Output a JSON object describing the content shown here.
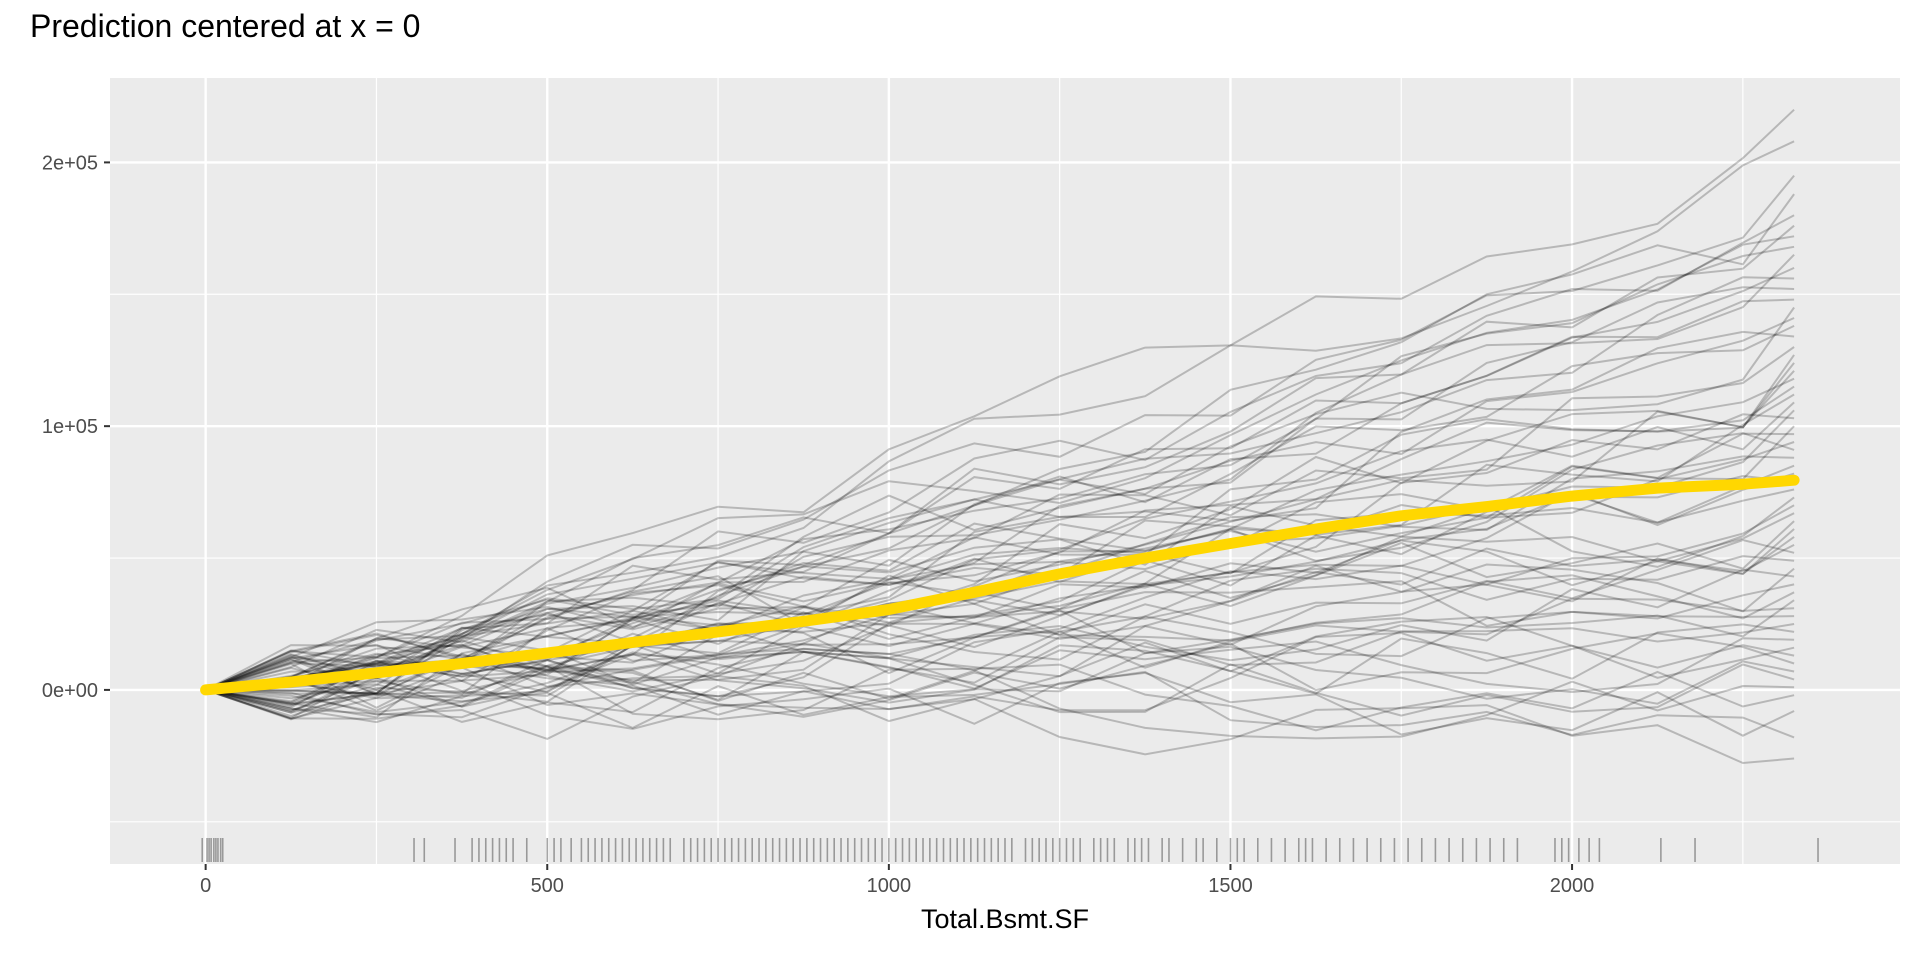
{
  "chart_data": {
    "type": "line",
    "title": "Prediction centered at x = 0",
    "xlabel": "Total.Bsmt.SF",
    "ylabel": "",
    "xlim": [
      -140,
      2480
    ],
    "ylim": [
      -66000,
      232000
    ],
    "x_ticks": [
      {
        "value": 0,
        "label": "0"
      },
      {
        "value": 500,
        "label": "500"
      },
      {
        "value": 1000,
        "label": "1000"
      },
      {
        "value": 1500,
        "label": "1500"
      },
      {
        "value": 2000,
        "label": "2000"
      }
    ],
    "y_ticks": [
      {
        "value": 0,
        "label": "0e+00"
      },
      {
        "value": 100000,
        "label": "1e+05"
      },
      {
        "value": 200000,
        "label": "2e+05"
      }
    ],
    "grid": true,
    "background": "#EBEBEB",
    "ice_color": "#000000",
    "ice_opacity": 0.22,
    "pdp_color": "#FFD700",
    "x_grid": [
      0,
      125,
      250,
      375,
      500,
      625,
      750,
      875,
      1000,
      1125,
      1250,
      1375,
      1500,
      1625,
      1750,
      1875,
      2000,
      2125,
      2250,
      2325
    ],
    "series": [
      {
        "role": "average",
        "x": [
          0,
          125,
          250,
          375,
          500,
          625,
          750,
          875,
          1000,
          1125,
          1250,
          1375,
          1500,
          1625,
          1750,
          1875,
          2000,
          2125,
          2250,
          2325
        ],
        "values": [
          0,
          3000,
          6500,
          10000,
          14000,
          18000,
          22000,
          26000,
          30500,
          37000,
          44000,
          50000,
          55500,
          61000,
          66000,
          69500,
          73500,
          76500,
          78000,
          79500
        ]
      }
    ],
    "ice_end_values": [
      220000,
      208000,
      195000,
      188000,
      180000,
      176000,
      172000,
      168000,
      165000,
      160000,
      156000,
      152000,
      148000,
      145000,
      141000,
      138000,
      134000,
      130000,
      127000,
      124000,
      121000,
      118000,
      115000,
      112000,
      109000,
      106000,
      103000,
      100000,
      97000,
      94000,
      91000,
      88000,
      85000,
      82000,
      79000,
      76000,
      73000,
      70000,
      67000,
      64000,
      61000,
      58000,
      55000,
      52000,
      49000,
      46000,
      43000,
      40000,
      37000,
      34000,
      31000,
      28000,
      25000,
      22000,
      19000,
      16000,
      13000,
      10000,
      7000,
      4000,
      1000,
      -2000,
      -8000,
      -18000,
      -26000
    ],
    "rug_x": [
      -5,
      2,
      5,
      8,
      12,
      15,
      18,
      22,
      25,
      305,
      320,
      365,
      390,
      400,
      410,
      420,
      430,
      440,
      450,
      470,
      500,
      510,
      520,
      535,
      550,
      560,
      570,
      580,
      590,
      600,
      610,
      620,
      630,
      640,
      650,
      660,
      670,
      680,
      700,
      710,
      720,
      730,
      740,
      750,
      760,
      770,
      780,
      790,
      800,
      810,
      820,
      830,
      840,
      850,
      860,
      870,
      880,
      890,
      900,
      910,
      920,
      930,
      940,
      950,
      960,
      970,
      980,
      990,
      1000,
      1010,
      1020,
      1030,
      1040,
      1050,
      1060,
      1070,
      1080,
      1090,
      1100,
      1110,
      1120,
      1130,
      1140,
      1150,
      1160,
      1170,
      1180,
      1200,
      1210,
      1220,
      1230,
      1240,
      1250,
      1260,
      1270,
      1280,
      1300,
      1310,
      1320,
      1330,
      1350,
      1360,
      1370,
      1380,
      1400,
      1410,
      1430,
      1450,
      1460,
      1480,
      1500,
      1510,
      1520,
      1540,
      1560,
      1580,
      1600,
      1610,
      1620,
      1640,
      1660,
      1680,
      1700,
      1720,
      1740,
      1760,
      1780,
      1800,
      1820,
      1840,
      1860,
      1880,
      1900,
      1920,
      1975,
      1985,
      1995,
      2010,
      2025,
      2040,
      2130,
      2180,
      2360
    ]
  }
}
